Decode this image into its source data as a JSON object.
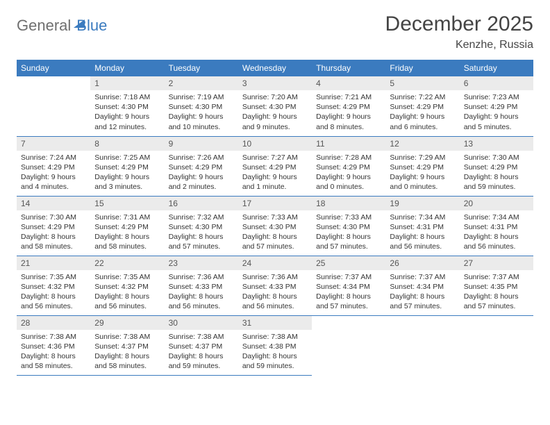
{
  "logo": {
    "part1": "General",
    "part2": "Blue"
  },
  "title": "December 2025",
  "location": "Kenzhe, Russia",
  "headers": [
    "Sunday",
    "Monday",
    "Tuesday",
    "Wednesday",
    "Thursday",
    "Friday",
    "Saturday"
  ],
  "colors": {
    "header_bg": "#3b7bbf",
    "header_fg": "#ffffff",
    "daynum_bg": "#ebebeb",
    "border": "#3b7bbf",
    "logo_gray": "#6f6f6f",
    "logo_blue": "#3b7bbf"
  },
  "weeks": [
    [
      {
        "n": "",
        "sr": "",
        "ss": "",
        "dl": ""
      },
      {
        "n": "1",
        "sr": "Sunrise: 7:18 AM",
        "ss": "Sunset: 4:30 PM",
        "dl": "Daylight: 9 hours and 12 minutes."
      },
      {
        "n": "2",
        "sr": "Sunrise: 7:19 AM",
        "ss": "Sunset: 4:30 PM",
        "dl": "Daylight: 9 hours and 10 minutes."
      },
      {
        "n": "3",
        "sr": "Sunrise: 7:20 AM",
        "ss": "Sunset: 4:30 PM",
        "dl": "Daylight: 9 hours and 9 minutes."
      },
      {
        "n": "4",
        "sr": "Sunrise: 7:21 AM",
        "ss": "Sunset: 4:29 PM",
        "dl": "Daylight: 9 hours and 8 minutes."
      },
      {
        "n": "5",
        "sr": "Sunrise: 7:22 AM",
        "ss": "Sunset: 4:29 PM",
        "dl": "Daylight: 9 hours and 6 minutes."
      },
      {
        "n": "6",
        "sr": "Sunrise: 7:23 AM",
        "ss": "Sunset: 4:29 PM",
        "dl": "Daylight: 9 hours and 5 minutes."
      }
    ],
    [
      {
        "n": "7",
        "sr": "Sunrise: 7:24 AM",
        "ss": "Sunset: 4:29 PM",
        "dl": "Daylight: 9 hours and 4 minutes."
      },
      {
        "n": "8",
        "sr": "Sunrise: 7:25 AM",
        "ss": "Sunset: 4:29 PM",
        "dl": "Daylight: 9 hours and 3 minutes."
      },
      {
        "n": "9",
        "sr": "Sunrise: 7:26 AM",
        "ss": "Sunset: 4:29 PM",
        "dl": "Daylight: 9 hours and 2 minutes."
      },
      {
        "n": "10",
        "sr": "Sunrise: 7:27 AM",
        "ss": "Sunset: 4:29 PM",
        "dl": "Daylight: 9 hours and 1 minute."
      },
      {
        "n": "11",
        "sr": "Sunrise: 7:28 AM",
        "ss": "Sunset: 4:29 PM",
        "dl": "Daylight: 9 hours and 0 minutes."
      },
      {
        "n": "12",
        "sr": "Sunrise: 7:29 AM",
        "ss": "Sunset: 4:29 PM",
        "dl": "Daylight: 9 hours and 0 minutes."
      },
      {
        "n": "13",
        "sr": "Sunrise: 7:30 AM",
        "ss": "Sunset: 4:29 PM",
        "dl": "Daylight: 8 hours and 59 minutes."
      }
    ],
    [
      {
        "n": "14",
        "sr": "Sunrise: 7:30 AM",
        "ss": "Sunset: 4:29 PM",
        "dl": "Daylight: 8 hours and 58 minutes."
      },
      {
        "n": "15",
        "sr": "Sunrise: 7:31 AM",
        "ss": "Sunset: 4:29 PM",
        "dl": "Daylight: 8 hours and 58 minutes."
      },
      {
        "n": "16",
        "sr": "Sunrise: 7:32 AM",
        "ss": "Sunset: 4:30 PM",
        "dl": "Daylight: 8 hours and 57 minutes."
      },
      {
        "n": "17",
        "sr": "Sunrise: 7:33 AM",
        "ss": "Sunset: 4:30 PM",
        "dl": "Daylight: 8 hours and 57 minutes."
      },
      {
        "n": "18",
        "sr": "Sunrise: 7:33 AM",
        "ss": "Sunset: 4:30 PM",
        "dl": "Daylight: 8 hours and 57 minutes."
      },
      {
        "n": "19",
        "sr": "Sunrise: 7:34 AM",
        "ss": "Sunset: 4:31 PM",
        "dl": "Daylight: 8 hours and 56 minutes."
      },
      {
        "n": "20",
        "sr": "Sunrise: 7:34 AM",
        "ss": "Sunset: 4:31 PM",
        "dl": "Daylight: 8 hours and 56 minutes."
      }
    ],
    [
      {
        "n": "21",
        "sr": "Sunrise: 7:35 AM",
        "ss": "Sunset: 4:32 PM",
        "dl": "Daylight: 8 hours and 56 minutes."
      },
      {
        "n": "22",
        "sr": "Sunrise: 7:35 AM",
        "ss": "Sunset: 4:32 PM",
        "dl": "Daylight: 8 hours and 56 minutes."
      },
      {
        "n": "23",
        "sr": "Sunrise: 7:36 AM",
        "ss": "Sunset: 4:33 PM",
        "dl": "Daylight: 8 hours and 56 minutes."
      },
      {
        "n": "24",
        "sr": "Sunrise: 7:36 AM",
        "ss": "Sunset: 4:33 PM",
        "dl": "Daylight: 8 hours and 56 minutes."
      },
      {
        "n": "25",
        "sr": "Sunrise: 7:37 AM",
        "ss": "Sunset: 4:34 PM",
        "dl": "Daylight: 8 hours and 57 minutes."
      },
      {
        "n": "26",
        "sr": "Sunrise: 7:37 AM",
        "ss": "Sunset: 4:34 PM",
        "dl": "Daylight: 8 hours and 57 minutes."
      },
      {
        "n": "27",
        "sr": "Sunrise: 7:37 AM",
        "ss": "Sunset: 4:35 PM",
        "dl": "Daylight: 8 hours and 57 minutes."
      }
    ],
    [
      {
        "n": "28",
        "sr": "Sunrise: 7:38 AM",
        "ss": "Sunset: 4:36 PM",
        "dl": "Daylight: 8 hours and 58 minutes."
      },
      {
        "n": "29",
        "sr": "Sunrise: 7:38 AM",
        "ss": "Sunset: 4:37 PM",
        "dl": "Daylight: 8 hours and 58 minutes."
      },
      {
        "n": "30",
        "sr": "Sunrise: 7:38 AM",
        "ss": "Sunset: 4:37 PM",
        "dl": "Daylight: 8 hours and 59 minutes."
      },
      {
        "n": "31",
        "sr": "Sunrise: 7:38 AM",
        "ss": "Sunset: 4:38 PM",
        "dl": "Daylight: 8 hours and 59 minutes."
      },
      {
        "n": "",
        "sr": "",
        "ss": "",
        "dl": ""
      },
      {
        "n": "",
        "sr": "",
        "ss": "",
        "dl": ""
      },
      {
        "n": "",
        "sr": "",
        "ss": "",
        "dl": ""
      }
    ]
  ]
}
